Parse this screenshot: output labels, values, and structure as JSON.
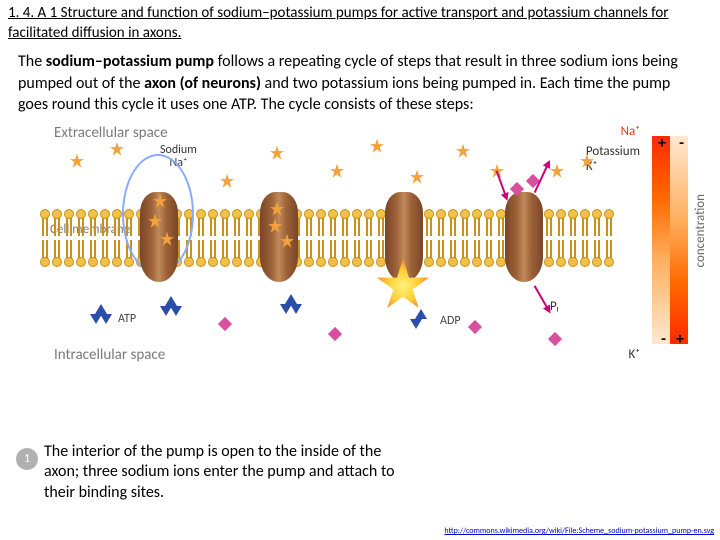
{
  "header": "1. 4. A 1 Structure and function of sodium–potassium pumps for active transport and potassium channels for facilitated diffusion in axons.",
  "intro": {
    "pre": "The ",
    "bold1": "sodium–potassium pump",
    "mid1": " follows a repeating cycle of steps that result in three sodium ions being pumped out of the ",
    "bold2": "axon (of neurons)",
    "mid2": " and two potassium ions being pumped in. Each time the pump goes round this cycle it uses one ATP. The cycle consists of these steps:"
  },
  "labels": {
    "extracellular": "Extracellular space",
    "intracellular": "Intracellular space",
    "cell_membrane": "Cell membrane",
    "sodium_line1": "Sodium",
    "sodium_line2": "Na⁺",
    "na_top": "Na⁺",
    "potassium": "Potassium",
    "k_symbol": "K⁺",
    "atp": "ATP",
    "adp": "ADP",
    "pi": "Pᵢ",
    "concentration": "concentration",
    "plus": "+",
    "minus": "-"
  },
  "step": {
    "num": "1",
    "text": "The interior of the pump is open to the inside of the axon; three sodium ions enter the pump and attach to their binding sites."
  },
  "source_url": "http://commons.wikimedia.org/wiki/File:Scheme_sodium-potassium_pump-en.svg",
  "colors": {
    "na_red": "#e53518",
    "grad_hot": "#ff2a00"
  }
}
